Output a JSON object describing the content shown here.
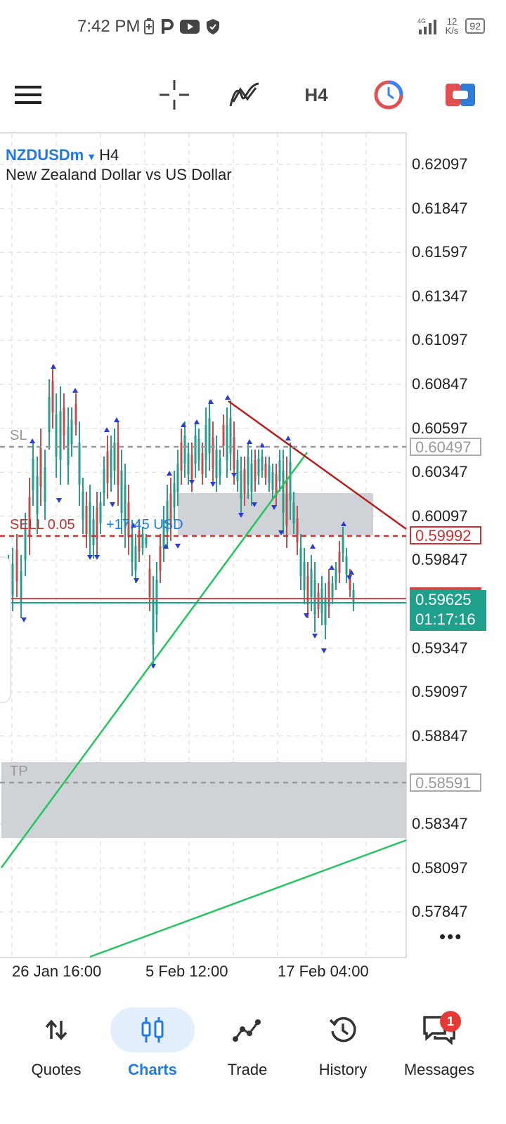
{
  "status_bar": {
    "time": "7:42 PM",
    "network_type": "4G",
    "speed_value": "12",
    "speed_unit": "K/s",
    "battery": "92"
  },
  "toolbar": {
    "timeframe": "H4",
    "icons": [
      "menu-icon",
      "crosshair-icon",
      "indicators-icon",
      "timeframe",
      "trade-clock-icon",
      "one-click-trading-icon"
    ]
  },
  "chart": {
    "symbol": "NZDUSDm",
    "timeframe": "H4",
    "description": "New Zealand Dollar vs US Dollar",
    "price_axis": [
      "0.62097",
      "0.61847",
      "0.61597",
      "0.61347",
      "0.61097",
      "0.60847",
      "0.60597",
      "0.60347",
      "0.60097",
      "0.59847",
      "0.59347",
      "0.59097",
      "0.58847",
      "0.58347",
      "0.58097",
      "0.57847"
    ],
    "time_axis": [
      "26 Jan 16:00",
      "5 Feb 12:00",
      "17 Feb 04:00"
    ],
    "sl_label": "SL",
    "sl_price": "0.60497",
    "tp_label": "TP",
    "tp_price": "0.58591",
    "order_label": "SELL 0.05",
    "order_profit": "+17.45 USD",
    "order_price": "0.59992",
    "current_bid": "0.59625",
    "bar_countdown": "01:17:16",
    "more": "•••",
    "colors": {
      "bull": "#2a9d8f",
      "bear": "#c0504d",
      "sl_tp": "#999999",
      "order": "#d03030",
      "trendline_green": "#22c55e",
      "trendline_red": "#b91c1c",
      "accent": "#1e7be6",
      "zone": "#cfd3d7"
    }
  },
  "nav": {
    "items": [
      {
        "label": "Quotes",
        "icon": "quotes-icon"
      },
      {
        "label": "Charts",
        "icon": "charts-icon",
        "active": true
      },
      {
        "label": "Trade",
        "icon": "trade-icon"
      },
      {
        "label": "History",
        "icon": "history-icon"
      },
      {
        "label": "Messages",
        "icon": "messages-icon"
      }
    ],
    "messages_badge": "1"
  }
}
